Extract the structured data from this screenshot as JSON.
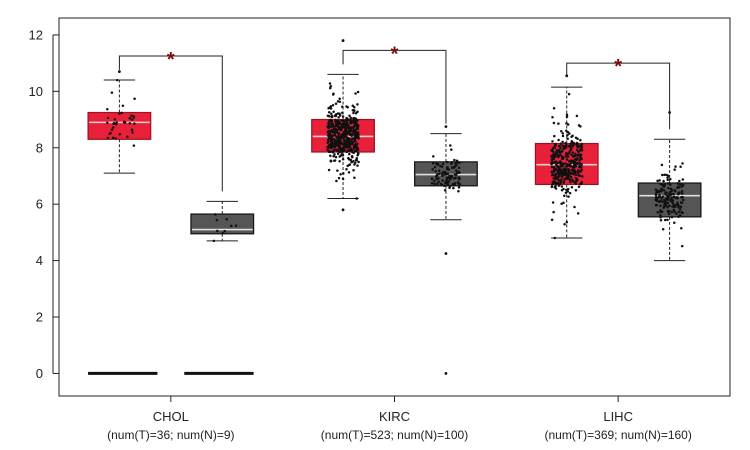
{
  "chart_data": {
    "type": "box",
    "ylim": [
      -0.8,
      12.6
    ],
    "y_ticks": [
      0,
      2,
      4,
      6,
      8,
      10,
      12
    ],
    "colors": {
      "tumor_fill": "#e8203a",
      "tumor_edge": "#a0101e",
      "normal_fill": "#555555",
      "normal_edge": "#111111",
      "star": "#7a0d0d",
      "zero_bar": "#111111"
    },
    "groups": [
      {
        "category": "CHOL",
        "counts": "(num(T)=36; num(N)=9)",
        "significance": "*",
        "tumor": {
          "q1": 8.3,
          "median": 8.9,
          "q3": 9.25,
          "whisker_low": 7.1,
          "whisker_high": 10.4,
          "n": 36
        },
        "normal": {
          "q1": 4.95,
          "median": 5.1,
          "q3": 5.65,
          "whisker_low": 4.7,
          "whisker_high": 6.1,
          "n": 9
        }
      },
      {
        "category": "KIRC",
        "counts": "(num(T)=523; num(N)=100)",
        "significance": "*",
        "tumor": {
          "q1": 7.85,
          "median": 8.4,
          "q3": 9.0,
          "whisker_low": 6.2,
          "whisker_high": 10.6,
          "n": 523
        },
        "normal": {
          "q1": 6.65,
          "median": 7.05,
          "q3": 7.5,
          "whisker_low": 5.45,
          "whisker_high": 8.5,
          "n": 100
        }
      },
      {
        "category": "LIHC",
        "counts": "(num(T)=369; num(N)=160)",
        "significance": "*",
        "tumor": {
          "q1": 6.7,
          "median": 7.4,
          "q3": 8.15,
          "whisker_low": 4.8,
          "whisker_high": 10.15,
          "n": 369
        },
        "normal": {
          "q1": 5.55,
          "median": 6.3,
          "q3": 6.75,
          "whisker_low": 4.0,
          "whisker_high": 8.3,
          "n": 160
        }
      }
    ],
    "zero_segments": [
      {
        "from": 0.63,
        "to": 0.94,
        "y": 0
      },
      {
        "from": 1.06,
        "to": 1.37,
        "y": 0
      }
    ],
    "outliers": [
      {
        "group": 0,
        "series": "tumor",
        "y": 10.7
      },
      {
        "group": 1,
        "series": "tumor",
        "y": 11.8
      },
      {
        "group": 1,
        "series": "tumor",
        "y": 5.8
      },
      {
        "group": 1,
        "series": "normal",
        "y": 4.25
      },
      {
        "group": 1,
        "series": "normal",
        "y": 0.0
      },
      {
        "group": 1,
        "series": "normal",
        "y": 8.75
      },
      {
        "group": 2,
        "series": "tumor",
        "y": 10.55
      },
      {
        "group": 2,
        "series": "normal",
        "y": 9.25
      }
    ]
  }
}
